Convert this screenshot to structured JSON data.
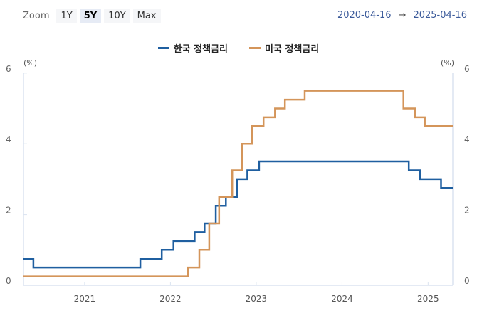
{
  "toolbar": {
    "zoom_label": "Zoom",
    "zoom_options": [
      "1Y",
      "5Y",
      "10Y",
      "Max"
    ],
    "active_zoom": "5Y",
    "range_start": "2020-04-16",
    "range_arrow": "→",
    "range_end": "2025-04-16"
  },
  "legend": [
    {
      "label": "한국 정책금리",
      "color": "#1f5fa0"
    },
    {
      "label": "미국 정책금리",
      "color": "#d4955a"
    }
  ],
  "axis": {
    "unit_left": "(%)",
    "unit_right": "(%)",
    "y_ticks": [
      "0",
      "2",
      "4",
      "6"
    ],
    "x_ticks": [
      "2021",
      "2022",
      "2023",
      "2024",
      "2025"
    ]
  },
  "chart_data": {
    "type": "line",
    "title": "",
    "xlabel": "",
    "ylabel": "(%)",
    "ylim": [
      0,
      6
    ],
    "xlim": [
      "2020-04-16",
      "2025-04-16"
    ],
    "grid": false,
    "legend_position": "top",
    "x_ticks": [
      "2021",
      "2022",
      "2023",
      "2024",
      "2025"
    ],
    "series": [
      {
        "name": "한국 정책금리",
        "color": "#1f5fa0",
        "step": true,
        "points": [
          [
            "2020-04-16",
            0.75
          ],
          [
            "2020-05-28",
            0.5
          ],
          [
            "2021-08-26",
            0.75
          ],
          [
            "2021-11-25",
            1.0
          ],
          [
            "2022-01-14",
            1.25
          ],
          [
            "2022-04-14",
            1.5
          ],
          [
            "2022-05-26",
            1.75
          ],
          [
            "2022-07-13",
            2.25
          ],
          [
            "2022-08-25",
            2.5
          ],
          [
            "2022-10-12",
            3.0
          ],
          [
            "2022-11-24",
            3.25
          ],
          [
            "2023-01-13",
            3.5
          ],
          [
            "2024-10-11",
            3.25
          ],
          [
            "2024-11-28",
            3.0
          ],
          [
            "2025-02-25",
            2.75
          ],
          [
            "2025-04-16",
            2.75
          ]
        ]
      },
      {
        "name": "미국 정책금리",
        "color": "#d4955a",
        "step": true,
        "points": [
          [
            "2020-04-16",
            0.25
          ],
          [
            "2022-03-16",
            0.5
          ],
          [
            "2022-05-04",
            1.0
          ],
          [
            "2022-06-15",
            1.75
          ],
          [
            "2022-07-27",
            2.5
          ],
          [
            "2022-09-21",
            3.25
          ],
          [
            "2022-11-02",
            4.0
          ],
          [
            "2022-12-14",
            4.5
          ],
          [
            "2023-02-01",
            4.75
          ],
          [
            "2023-03-22",
            5.0
          ],
          [
            "2023-05-03",
            5.25
          ],
          [
            "2023-07-26",
            5.5
          ],
          [
            "2024-09-18",
            5.0
          ],
          [
            "2024-11-07",
            4.75
          ],
          [
            "2024-12-18",
            4.5
          ],
          [
            "2025-04-16",
            4.5
          ]
        ]
      }
    ]
  }
}
